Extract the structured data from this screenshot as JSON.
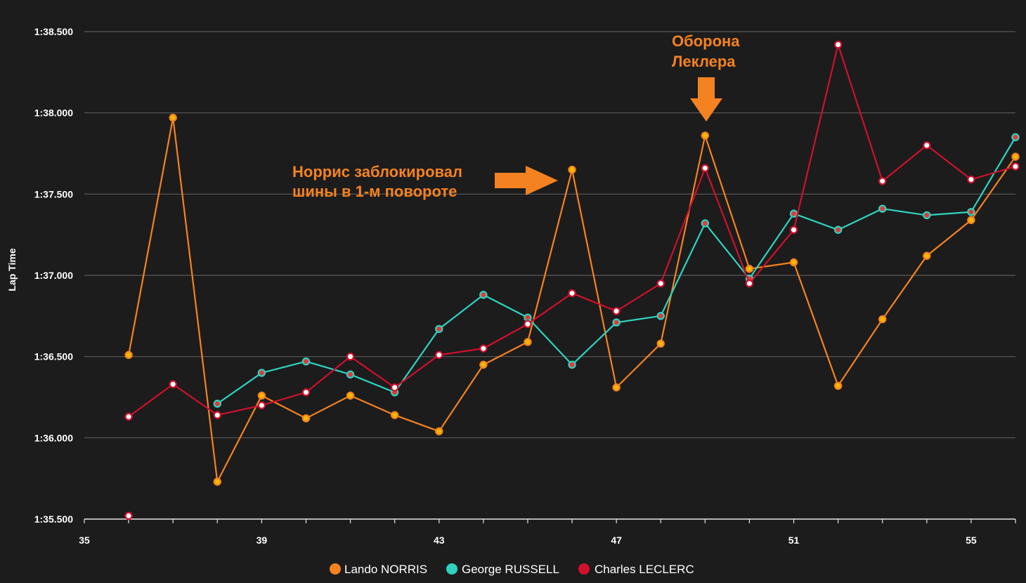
{
  "chart_data": {
    "type": "line",
    "ylabel": "Lap Time",
    "xlabel": "",
    "xlim": [
      35,
      56
    ],
    "x_ticks": [
      35,
      39,
      43,
      47,
      51,
      55
    ],
    "ylim": [
      95.5,
      98.5
    ],
    "y_ticks": [
      {
        "value": 95.5,
        "label": "1:35.500"
      },
      {
        "value": 96.0,
        "label": "1:36.000"
      },
      {
        "value": 96.5,
        "label": "1:36.500"
      },
      {
        "value": 97.0,
        "label": "1:37.000"
      },
      {
        "value": 97.5,
        "label": "1:37.500"
      },
      {
        "value": 98.0,
        "label": "1:38.000"
      },
      {
        "value": 98.5,
        "label": "1:38.500"
      }
    ],
    "grid": true,
    "legend_position": "bottom",
    "series": [
      {
        "name": "Lando NORRIS",
        "color": "#f58220",
        "marker_fill": "#f5b800",
        "marker_stroke": "#f58220",
        "points": [
          [
            36,
            96.51
          ],
          [
            37,
            97.97
          ],
          [
            38,
            95.73
          ],
          [
            39,
            96.26
          ],
          [
            40,
            96.12
          ],
          [
            41,
            96.26
          ],
          [
            42,
            96.14
          ],
          [
            43,
            96.04
          ],
          [
            44,
            96.45
          ],
          [
            45,
            96.59
          ],
          [
            46,
            97.65
          ],
          [
            47,
            96.31
          ],
          [
            48,
            96.58
          ],
          [
            49,
            97.86
          ],
          [
            50,
            97.04
          ],
          [
            51,
            97.08
          ],
          [
            52,
            96.32
          ],
          [
            53,
            96.73
          ],
          [
            54,
            97.12
          ],
          [
            55,
            97.34
          ],
          [
            56,
            97.73
          ]
        ]
      },
      {
        "name": "George RUSSELL",
        "color": "#2fd3c0",
        "marker_fill": "#e03a3a",
        "marker_stroke": "#2fd3c0",
        "points": [
          [
            38,
            96.21
          ],
          [
            39,
            96.4
          ],
          [
            40,
            96.47
          ],
          [
            41,
            96.39
          ],
          [
            42,
            96.28
          ],
          [
            43,
            96.67
          ],
          [
            44,
            96.88
          ],
          [
            45,
            96.74
          ],
          [
            46,
            96.45
          ],
          [
            47,
            96.71
          ],
          [
            48,
            96.75
          ],
          [
            49,
            97.32
          ],
          [
            50,
            96.98
          ],
          [
            51,
            97.38
          ],
          [
            52,
            97.28
          ],
          [
            53,
            97.41
          ],
          [
            54,
            97.37
          ],
          [
            55,
            97.39
          ],
          [
            56,
            97.85
          ]
        ]
      },
      {
        "name": "Charles LECLERC",
        "color": "#d0102c",
        "marker_fill": "#ffffff",
        "marker_stroke": "#d0102c",
        "points": [
          [
            36,
            96.13
          ],
          [
            37,
            96.33
          ],
          [
            38,
            96.14
          ],
          [
            39,
            96.2
          ],
          [
            40,
            96.28
          ],
          [
            41,
            96.5
          ],
          [
            42,
            96.31
          ],
          [
            43,
            96.51
          ],
          [
            44,
            96.55
          ],
          [
            45,
            96.7
          ],
          [
            46,
            96.89
          ],
          [
            47,
            96.78
          ],
          [
            48,
            96.95
          ],
          [
            49,
            97.66
          ],
          [
            50,
            96.95
          ],
          [
            51,
            97.28
          ],
          [
            52,
            98.42
          ],
          [
            53,
            97.58
          ],
          [
            54,
            97.8
          ],
          [
            55,
            97.59
          ],
          [
            56,
            97.67
          ]
        ],
        "extra_points": [
          [
            36,
            95.52
          ]
        ]
      }
    ],
    "annotations": [
      {
        "lines": [
          "Норрис заблокировал",
          "шины в 1-м повороте"
        ],
        "color": "#f58220",
        "arrow": "right"
      },
      {
        "lines": [
          "Оборона",
          "Леклера"
        ],
        "color": "#f58220",
        "arrow": "down"
      }
    ]
  }
}
